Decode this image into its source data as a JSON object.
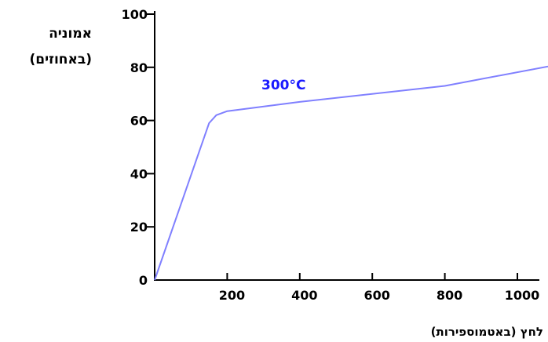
{
  "chart_data": {
    "type": "line",
    "xlabel": "לחץ (באטמוספירות)",
    "ylabel_lines": [
      "אמוניה",
      "(באחוזים)"
    ],
    "xlim": [
      0,
      1200
    ],
    "ylim": [
      0,
      100
    ],
    "xticks": [
      0,
      200,
      400,
      600,
      800,
      1000
    ],
    "xtick_labels": [
      "",
      "200",
      "400",
      "600",
      "800",
      "1000"
    ],
    "yticks": [
      0,
      20,
      40,
      60,
      80,
      100
    ],
    "ytick_labels": [
      "0",
      "20",
      "40",
      "60",
      "80",
      "100"
    ],
    "grid": false,
    "series": [
      {
        "label": "300°C",
        "color": "#8080ff",
        "x": [
          0,
          150,
          170,
          200,
          400,
          800,
          1150
        ],
        "y": [
          0,
          59,
          62,
          63.5,
          67,
          73,
          82
        ]
      }
    ]
  }
}
